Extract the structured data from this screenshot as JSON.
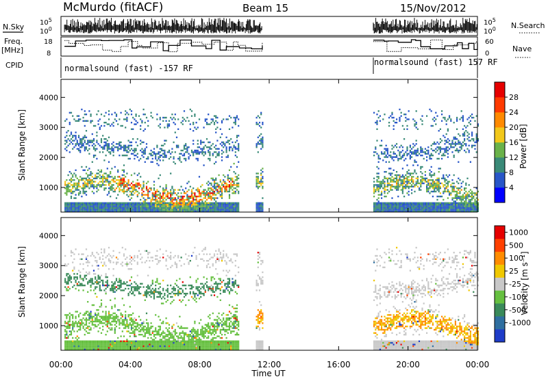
{
  "header": {
    "station": "McMurdo (fitACF)",
    "beam": "Beam 15",
    "date": "15/Nov/2012"
  },
  "strip_labels": {
    "nsky": "N.Sky",
    "nsearch": "N.Search",
    "freq": "Freq.",
    "freq_unit": "[MHz]",
    "nave": "Nave",
    "cpid": "CPID"
  },
  "nsky_ticks": [
    "10^5",
    "10^0"
  ],
  "nsearch_ticks": [
    "10^5",
    "10^0"
  ],
  "freq_ticks": [
    "18",
    "8"
  ],
  "nave_ticks": [
    "60",
    "0"
  ],
  "cpid_segments": [
    {
      "label": "normalsound (fast) -157 RF",
      "start_hour": 0
    },
    {
      "label": "normalsound (fast) 157 RF",
      "start_hour": 18
    }
  ],
  "chart_data": [
    {
      "type": "heatmap",
      "name": "power-panel",
      "xlabel": "",
      "ylabel": "Slant Range [km]",
      "x_ticks": [
        "00:00",
        "04:00",
        "08:00",
        "12:00",
        "16:00",
        "20:00",
        "00:00"
      ],
      "y_ticks": [
        "1000",
        "2000",
        "3000",
        "4000"
      ],
      "xlim_hours": [
        0,
        24
      ],
      "ylim_km": [
        180,
        4600
      ],
      "colorbar_label": "Power [dB]",
      "colorbar_ticks": [
        "4",
        "8",
        "12",
        "16",
        "20",
        "24",
        "28"
      ],
      "colorbar_colors": [
        "#0000ff",
        "#2856c8",
        "#3a8a78",
        "#6ab24a",
        "#f2c81a",
        "#ff8a00",
        "#ff3a00",
        "#e60000"
      ],
      "data_windows_hours": [
        [
          0.2,
          11.6
        ],
        [
          18.0,
          24.0
        ]
      ]
    },
    {
      "type": "heatmap",
      "name": "velocity-panel",
      "xlabel": "Time UT",
      "ylabel": "Slant Range [km]",
      "x_ticks": [
        "00:00",
        "04:00",
        "08:00",
        "12:00",
        "16:00",
        "20:00",
        "00:00"
      ],
      "y_ticks": [
        "1000",
        "2000",
        "3000",
        "4000"
      ],
      "xlim_hours": [
        0,
        24
      ],
      "ylim_km": [
        180,
        4600
      ],
      "colorbar_label": "Velocity [m s⁻¹]",
      "colorbar_ticks": [
        "1000",
        "500",
        "100",
        "25",
        "-25",
        "-100",
        "-500",
        "-1000"
      ],
      "colorbar_colors": [
        "#1e3cc8",
        "#2f6fa0",
        "#3a8a5a",
        "#66c040",
        "#c8c8c8",
        "#f0c800",
        "#ff8c00",
        "#ff4000",
        "#e60000"
      ],
      "data_windows_hours": [
        [
          0.2,
          11.6
        ],
        [
          18.0,
          24.0
        ]
      ]
    }
  ]
}
